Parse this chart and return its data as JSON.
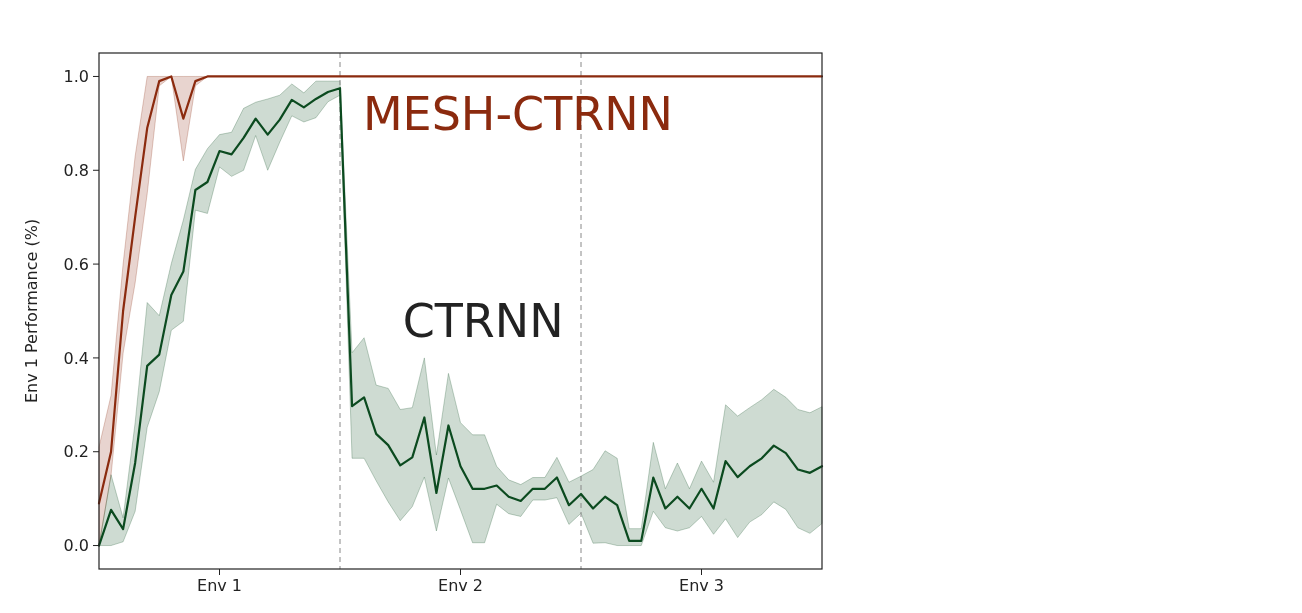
{
  "chart_data": {
    "type": "line",
    "ylabel": "Env 1 Performance (%)",
    "ylim": [
      -0.05,
      1.05
    ],
    "categories": [
      null,
      null,
      null,
      null,
      null,
      null,
      null,
      null,
      null,
      null,
      "Env 1",
      null,
      null,
      null,
      null,
      null,
      null,
      null,
      null,
      null,
      null,
      null,
      null,
      null,
      null,
      null,
      null,
      null,
      null,
      null,
      "Env 2",
      null,
      null,
      null,
      null,
      null,
      null,
      null,
      null,
      null,
      null,
      null,
      null,
      null,
      null,
      null,
      null,
      null,
      null,
      null,
      "Env 3",
      null,
      null,
      null,
      null,
      null,
      null,
      null,
      null,
      null,
      null
    ],
    "yticks": [
      {
        "value": 0,
        "label": "0.0"
      },
      {
        "value": 0.2,
        "label": "0.2"
      },
      {
        "value": 0.4,
        "label": "0.4"
      },
      {
        "value": 0.6,
        "label": "0.6"
      },
      {
        "value": 0.8,
        "label": "0.8"
      },
      {
        "value": 1,
        "label": "1.0"
      }
    ],
    "series": [
      {
        "name": "MESH-CTRNN",
        "color": "#8b2a0e",
        "values": [
          0.09,
          0.2,
          0.5,
          0.7,
          0.89,
          0.99,
          1,
          0.91,
          0.99,
          1,
          1,
          1,
          1,
          1,
          1,
          1,
          1,
          1,
          1,
          1,
          1,
          1,
          1,
          1,
          1,
          1,
          1,
          1,
          1,
          1,
          1,
          1,
          1,
          1,
          1,
          1,
          1,
          1,
          1,
          1,
          1,
          1,
          1,
          1,
          1,
          1,
          1,
          1,
          1,
          1,
          1,
          1,
          1,
          1,
          1,
          1,
          1,
          1,
          1,
          1,
          1
        ],
        "lower": [
          0,
          0.15,
          0.41,
          0.56,
          0.75,
          0.98,
          1,
          0.82,
          0.98,
          1,
          1,
          1,
          1,
          1,
          1,
          1,
          1,
          1,
          1,
          1,
          1,
          1,
          1,
          1,
          1,
          1,
          1,
          1,
          1,
          1,
          1,
          1,
          1,
          1,
          1,
          1,
          1,
          1,
          1,
          1,
          1,
          1,
          1,
          1,
          1,
          1,
          1,
          1,
          1,
          1,
          1,
          1,
          1,
          1,
          1,
          1,
          1,
          1,
          1,
          1,
          1
        ],
        "upper": [
          0.21,
          0.32,
          0.6,
          0.83,
          1,
          1,
          1,
          1,
          1,
          1,
          1,
          1,
          1,
          1,
          1,
          1,
          1,
          1,
          1,
          1,
          1,
          1,
          1,
          1,
          1,
          1,
          1,
          1,
          1,
          1,
          1,
          1,
          1,
          1,
          1,
          1,
          1,
          1,
          1,
          1,
          1,
          1,
          1,
          1,
          1,
          1,
          1,
          1,
          1,
          1,
          1,
          1,
          1,
          1,
          1,
          1,
          1,
          1,
          1,
          1,
          1
        ]
      },
      {
        "name": "CTRNN",
        "color": "#0b4a1f",
        "values": [
          0,
          0.076,
          0.035,
          0.176,
          0.383,
          0.407,
          0.534,
          0.584,
          0.758,
          0.775,
          0.841,
          0.834,
          0.869,
          0.91,
          0.876,
          0.908,
          0.95,
          0.934,
          0.952,
          0.967,
          0.975,
          0.297,
          0.316,
          0.238,
          0.214,
          0.171,
          0.188,
          0.273,
          0.112,
          0.256,
          0.169,
          0.121,
          0.121,
          0.128,
          0.104,
          0.095,
          0.121,
          0.121,
          0.145,
          0.086,
          0.11,
          0.079,
          0.104,
          0.086,
          0.01,
          0.01,
          0.145,
          0.079,
          0.104,
          0.079,
          0.121,
          0.079,
          0.18,
          0.146,
          0.169,
          0.186,
          0.213,
          0.197,
          0.162,
          0.155,
          0.169
        ],
        "lower": [
          0,
          0,
          0.008,
          0.073,
          0.252,
          0.328,
          0.459,
          0.478,
          0.715,
          0.708,
          0.807,
          0.787,
          0.8,
          0.874,
          0.8,
          0.86,
          0.916,
          0.903,
          0.912,
          0.946,
          0.96,
          0.186,
          0.186,
          0.138,
          0.093,
          0.053,
          0.083,
          0.146,
          0.031,
          0.144,
          0.076,
          0.006,
          0.006,
          0.088,
          0.068,
          0.062,
          0.097,
          0.097,
          0.102,
          0.045,
          0.069,
          0.005,
          0.006,
          0,
          0,
          0,
          0.073,
          0.038,
          0.031,
          0.038,
          0.062,
          0.024,
          0.057,
          0.017,
          0.05,
          0.066,
          0.093,
          0.077,
          0.038,
          0.026,
          0.047
        ],
        "upper": [
          0,
          0.151,
          0.059,
          0.262,
          0.518,
          0.49,
          0.601,
          0.694,
          0.802,
          0.846,
          0.876,
          0.881,
          0.932,
          0.945,
          0.952,
          0.96,
          0.984,
          0.965,
          0.99,
          0.99,
          0.99,
          0.411,
          0.443,
          0.342,
          0.335,
          0.29,
          0.294,
          0.4,
          0.193,
          0.367,
          0.262,
          0.236,
          0.236,
          0.169,
          0.14,
          0.13,
          0.145,
          0.145,
          0.188,
          0.135,
          0.148,
          0.162,
          0.202,
          0.186,
          0.036,
          0.036,
          0.22,
          0.121,
          0.176,
          0.121,
          0.18,
          0.135,
          0.3,
          0.276,
          0.294,
          0.311,
          0.333,
          0.316,
          0.29,
          0.283,
          0.296
        ]
      }
    ]
  }
}
